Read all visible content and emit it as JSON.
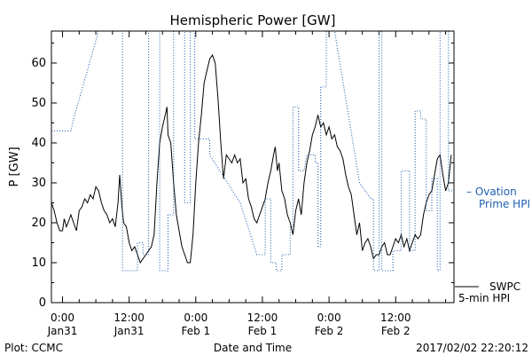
{
  "chart_data": {
    "type": "line",
    "title": "Hemispheric Power [GW]",
    "ylabel": "P [GW]",
    "xlabel": "Date and Time",
    "ylim": [
      0,
      68
    ],
    "yticks": [
      0,
      10,
      20,
      30,
      40,
      50,
      60
    ],
    "xlim": [
      -2,
      70.5
    ],
    "xticks": [
      {
        "t": 0,
        "time": "0:00",
        "date": "Jan31"
      },
      {
        "t": 12,
        "time": "12:00",
        "date": "Jan31"
      },
      {
        "t": 24,
        "time": "0:00",
        "date": "Feb 1"
      },
      {
        "t": 36,
        "time": "12:00",
        "date": "Feb 1"
      },
      {
        "t": 48,
        "time": "0:00",
        "date": "Feb 2"
      },
      {
        "t": 60,
        "time": "12:00",
        "date": "Feb 2"
      }
    ],
    "grid": false,
    "legend": "right",
    "series": [
      {
        "name": "SWPC 5-min HPI",
        "style": "solid",
        "color": "#000000",
        "points": [
          [
            -2,
            25
          ],
          [
            -1.5,
            23
          ],
          [
            -1,
            20
          ],
          [
            -0.5,
            18
          ],
          [
            0,
            18
          ],
          [
            0.3,
            21
          ],
          [
            0.7,
            19
          ],
          [
            1,
            20
          ],
          [
            1.5,
            22
          ],
          [
            2,
            20
          ],
          [
            2.5,
            18
          ],
          [
            3,
            23
          ],
          [
            3.5,
            24
          ],
          [
            4,
            26
          ],
          [
            4.5,
            25
          ],
          [
            5,
            27
          ],
          [
            5.5,
            26
          ],
          [
            6,
            29
          ],
          [
            6.5,
            28
          ],
          [
            7,
            25
          ],
          [
            7.5,
            23
          ],
          [
            8,
            22
          ],
          [
            8.5,
            20
          ],
          [
            9,
            21
          ],
          [
            9.5,
            19
          ],
          [
            10,
            25
          ],
          [
            10.3,
            32
          ],
          [
            10.7,
            24
          ],
          [
            11,
            20
          ],
          [
            11.5,
            19
          ],
          [
            12,
            15
          ],
          [
            12.5,
            13
          ],
          [
            13,
            14
          ],
          [
            13.5,
            12
          ],
          [
            14,
            10
          ],
          [
            14.5,
            11
          ],
          [
            15,
            12
          ],
          [
            15.5,
            13
          ],
          [
            16,
            14
          ],
          [
            16.5,
            17
          ],
          [
            17,
            30
          ],
          [
            17.5,
            40
          ],
          [
            18,
            44
          ],
          [
            18.5,
            47
          ],
          [
            18.8,
            49
          ],
          [
            19,
            42
          ],
          [
            19.5,
            40
          ],
          [
            20,
            30
          ],
          [
            20.5,
            22
          ],
          [
            21,
            18
          ],
          [
            21.5,
            14
          ],
          [
            22,
            12
          ],
          [
            22.5,
            10
          ],
          [
            23,
            10
          ],
          [
            23.5,
            17
          ],
          [
            24,
            30
          ],
          [
            24.5,
            40
          ],
          [
            25,
            47
          ],
          [
            25.5,
            55
          ],
          [
            26,
            58
          ],
          [
            26.5,
            61
          ],
          [
            27,
            62
          ],
          [
            27.5,
            60
          ],
          [
            28,
            51
          ],
          [
            28.5,
            40
          ],
          [
            29,
            31
          ],
          [
            29.5,
            37
          ],
          [
            30,
            36
          ],
          [
            30.5,
            35
          ],
          [
            31,
            37
          ],
          [
            31.5,
            35
          ],
          [
            32,
            36
          ],
          [
            32.5,
            30
          ],
          [
            33,
            31
          ],
          [
            33.5,
            26
          ],
          [
            34,
            24
          ],
          [
            34.5,
            21
          ],
          [
            35,
            20
          ],
          [
            35.5,
            22
          ],
          [
            36,
            24
          ],
          [
            36.5,
            26
          ],
          [
            37,
            30
          ],
          [
            37.5,
            33
          ],
          [
            38,
            37
          ],
          [
            38.3,
            39
          ],
          [
            38.7,
            33
          ],
          [
            39,
            35
          ],
          [
            39.5,
            28
          ],
          [
            40,
            26
          ],
          [
            40.5,
            22
          ],
          [
            41,
            20
          ],
          [
            41.5,
            17
          ],
          [
            42,
            23
          ],
          [
            42.5,
            26
          ],
          [
            43,
            22
          ],
          [
            43.5,
            30
          ],
          [
            44,
            35
          ],
          [
            44.5,
            38
          ],
          [
            45,
            42
          ],
          [
            45.5,
            44
          ],
          [
            46,
            47
          ],
          [
            46.5,
            44
          ],
          [
            47,
            45
          ],
          [
            47.5,
            42
          ],
          [
            48,
            44
          ],
          [
            48.5,
            41
          ],
          [
            49,
            42
          ],
          [
            49.5,
            39
          ],
          [
            50,
            38
          ],
          [
            50.5,
            36
          ],
          [
            51,
            32
          ],
          [
            51.5,
            29
          ],
          [
            52,
            27
          ],
          [
            52.5,
            22
          ],
          [
            53,
            17
          ],
          [
            53.5,
            20
          ],
          [
            54,
            13
          ],
          [
            54.5,
            15
          ],
          [
            55,
            16
          ],
          [
            55.5,
            14
          ],
          [
            56,
            11
          ],
          [
            56.5,
            12
          ],
          [
            57,
            12
          ],
          [
            57.5,
            14
          ],
          [
            58,
            15
          ],
          [
            58.5,
            12
          ],
          [
            59,
            12
          ],
          [
            59.5,
            14
          ],
          [
            60,
            16
          ],
          [
            60.5,
            15
          ],
          [
            61,
            17
          ],
          [
            61.5,
            14
          ],
          [
            62,
            16
          ],
          [
            62.5,
            13
          ],
          [
            63,
            15
          ],
          [
            63.5,
            17
          ],
          [
            64,
            16
          ],
          [
            64.5,
            17
          ],
          [
            65,
            22
          ],
          [
            65.5,
            25
          ],
          [
            66,
            27
          ],
          [
            66.5,
            28
          ],
          [
            67,
            32
          ],
          [
            67.5,
            36
          ],
          [
            68,
            37
          ],
          [
            68.5,
            32
          ],
          [
            69,
            28
          ],
          [
            69.5,
            30
          ],
          [
            70,
            37
          ]
        ]
      },
      {
        "name": "Ovation Prime HPI",
        "style": "dotted",
        "color": "#1f5fb0",
        "points": [
          [
            -2,
            43
          ],
          [
            1.5,
            43
          ],
          [
            2,
            46
          ],
          [
            6.5,
            68
          ],
          [
            10.8,
            68
          ],
          [
            10.8,
            8
          ],
          [
            13.5,
            8
          ],
          [
            13.5,
            15
          ],
          [
            14.5,
            15
          ],
          [
            14.5,
            12
          ],
          [
            15.5,
            12
          ],
          [
            15.5,
            68
          ],
          [
            17.5,
            68
          ],
          [
            17.5,
            8
          ],
          [
            19,
            8
          ],
          [
            19,
            22
          ],
          [
            20,
            22
          ],
          [
            20,
            68
          ],
          [
            22,
            68
          ],
          [
            22,
            25
          ],
          [
            23,
            25
          ],
          [
            23,
            68
          ],
          [
            23.8,
            68
          ],
          [
            23.8,
            41
          ],
          [
            26.5,
            41
          ],
          [
            26.5,
            37
          ],
          [
            32,
            25
          ],
          [
            35,
            12
          ],
          [
            36.5,
            12
          ],
          [
            36.5,
            26
          ],
          [
            37.5,
            26
          ],
          [
            37.5,
            10
          ],
          [
            38.5,
            10
          ],
          [
            38.5,
            8
          ],
          [
            39.5,
            8
          ],
          [
            39.5,
            12
          ],
          [
            41,
            12
          ],
          [
            41,
            19
          ],
          [
            41.5,
            19
          ],
          [
            41.5,
            49
          ],
          [
            42.5,
            49
          ],
          [
            42.5,
            33
          ],
          [
            43.5,
            33
          ],
          [
            43.5,
            33
          ],
          [
            44,
            37
          ],
          [
            45.5,
            37
          ],
          [
            45.5,
            35
          ],
          [
            46,
            35
          ],
          [
            46,
            14
          ],
          [
            46.5,
            14
          ],
          [
            46.5,
            54
          ],
          [
            47.5,
            54
          ],
          [
            47.5,
            68
          ],
          [
            49,
            68
          ],
          [
            53.5,
            30
          ],
          [
            55.5,
            26
          ],
          [
            56,
            26
          ],
          [
            56,
            8
          ],
          [
            57,
            8
          ],
          [
            57,
            68
          ],
          [
            57.5,
            68
          ],
          [
            57.5,
            8
          ],
          [
            59.5,
            8
          ],
          [
            59.5,
            13
          ],
          [
            61,
            13
          ],
          [
            61,
            33
          ],
          [
            62.5,
            33
          ],
          [
            62.5,
            13
          ],
          [
            63.5,
            13
          ],
          [
            63.5,
            48
          ],
          [
            64.5,
            48
          ],
          [
            64.5,
            46
          ],
          [
            65.5,
            46
          ],
          [
            65.5,
            23
          ],
          [
            66.5,
            23
          ],
          [
            66.5,
            31
          ],
          [
            67.5,
            31
          ],
          [
            67.5,
            8
          ],
          [
            68,
            8
          ],
          [
            68,
            68
          ],
          [
            69.5,
            68
          ],
          [
            69.5,
            28
          ],
          [
            70.5,
            28
          ]
        ]
      }
    ],
    "legend_entries": {
      "ovation": [
        "– Ovation",
        "Prime HPI"
      ],
      "swpc": [
        "SWPC",
        "5-min HPI"
      ]
    }
  },
  "footer": {
    "plot_credit": "Plot: CCMC",
    "timestamp": "2017/02/02 22:20:12"
  },
  "colors": {
    "ovation": "#1f5fb0",
    "swpc": "#000000",
    "axis": "#000000"
  }
}
